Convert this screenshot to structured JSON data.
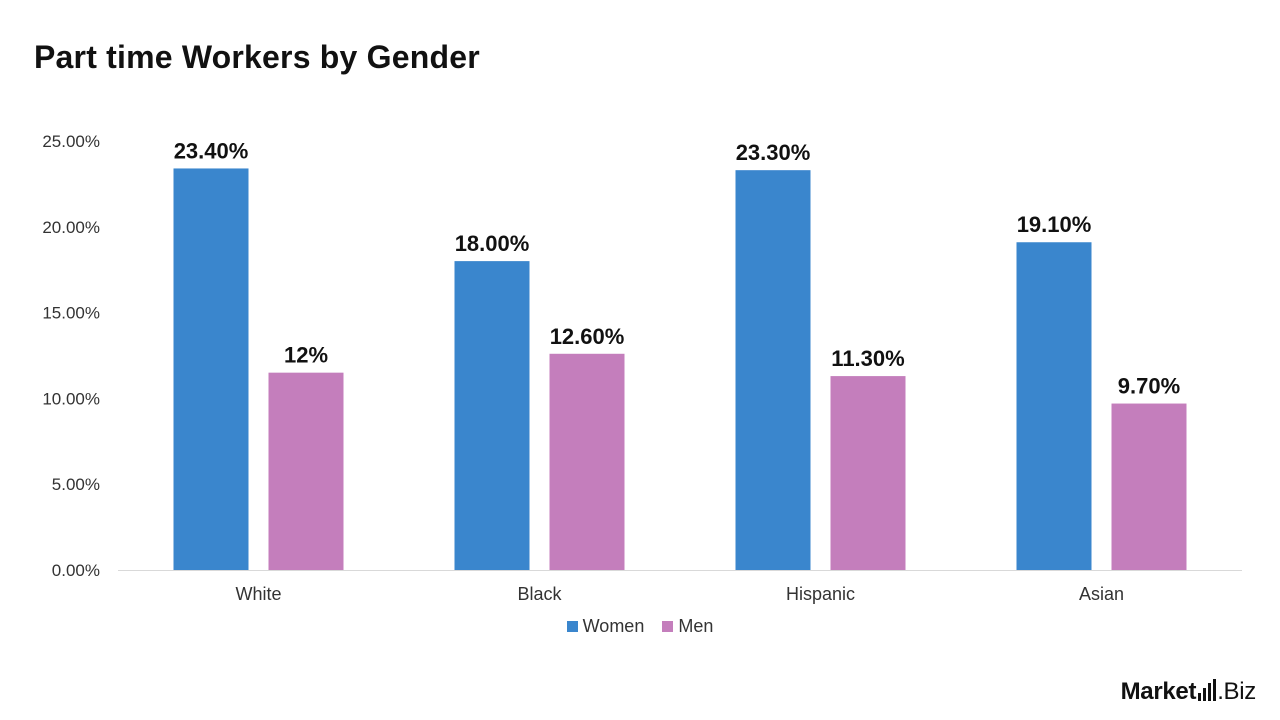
{
  "colors": {
    "women": "#3a86cd",
    "men": "#c47ebc",
    "axis": "#d9d9d9",
    "text": "#111111"
  },
  "chart_data": {
    "type": "bar",
    "title": "Part time Workers by Gender",
    "xlabel": "",
    "ylabel": "",
    "categories": [
      "White",
      "Black",
      "Hispanic",
      "Asian"
    ],
    "series": [
      {
        "name": "Women",
        "color": "#3a86cd",
        "values": [
          23.4,
          18.0,
          23.3,
          19.1
        ],
        "labels": [
          "23.40%",
          "18.00%",
          "23.30%",
          "19.10%"
        ]
      },
      {
        "name": "Men",
        "color": "#c47ebc",
        "values": [
          11.5,
          12.6,
          11.3,
          9.7
        ],
        "labels": [
          "12%",
          "12.60%",
          "11.30%",
          "9.70%"
        ]
      }
    ],
    "ylim": [
      0,
      25
    ],
    "yticks": [
      0,
      5,
      10,
      15,
      20,
      25
    ],
    "ytick_labels": [
      "0.00%",
      "5.00%",
      "10.00%",
      "15.00%",
      "20.00%",
      "25.00%"
    ],
    "grid": false,
    "legend_position": "bottom"
  },
  "logo": {
    "market": "Market",
    "dot_biz": ".Biz"
  }
}
